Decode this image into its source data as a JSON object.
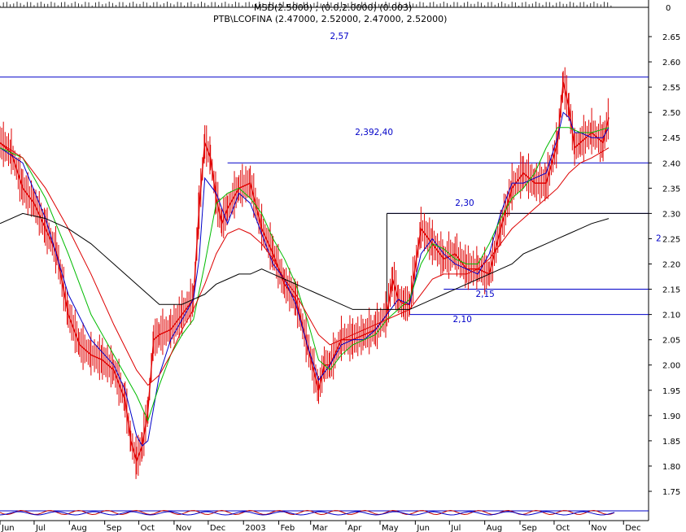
{
  "chart_data": {
    "type": "line",
    "title": "PTB\\LCOFINA (2.47000, 2.52000, 2.47000, 2.52000)",
    "header_overlap_text": "MSD(2.5000) ; (0.0,2.0000) (0.003)",
    "ylim": [
      1.71,
      2.68
    ],
    "x_range_days": [
      0,
      570
    ],
    "y_ticks": [
      "2.65",
      "2.60",
      "2.55",
      "2.50",
      "2.45",
      "2.40",
      "2.35",
      "2.30",
      "2.25",
      "2.20",
      "2.15",
      "2.10",
      "2.05",
      "2.00",
      "1.95",
      "1.90",
      "1.85",
      "1.80",
      "1.75"
    ],
    "y_tick_values": [
      2.65,
      2.6,
      2.55,
      2.5,
      2.45,
      2.4,
      2.35,
      2.3,
      2.25,
      2.2,
      2.15,
      2.1,
      2.05,
      2.0,
      1.95,
      1.9,
      1.85,
      1.8,
      1.75
    ],
    "top_right_value": "0",
    "x_ticks": [
      {
        "label": "Jun",
        "day": 0
      },
      {
        "label": "Jul",
        "day": 30
      },
      {
        "label": "Aug",
        "day": 61
      },
      {
        "label": "Sep",
        "day": 92
      },
      {
        "label": "Oct",
        "day": 122
      },
      {
        "label": "Nov",
        "day": 153
      },
      {
        "label": "Dec",
        "day": 183
      },
      {
        "label": "2003",
        "day": 214
      },
      {
        "label": "Feb",
        "day": 245
      },
      {
        "label": "Mar",
        "day": 273
      },
      {
        "label": "Apr",
        "day": 304
      },
      {
        "label": "May",
        "day": 334
      },
      {
        "label": "Jun",
        "day": 365
      },
      {
        "label": "Jul",
        "day": 395
      },
      {
        "label": "Aug",
        "day": 426
      },
      {
        "label": "Sep",
        "day": 457
      },
      {
        "label": "Oct",
        "day": 487
      },
      {
        "label": "Nov",
        "day": 518
      },
      {
        "label": "Dec",
        "day": 548
      }
    ],
    "levels": [
      {
        "label": "2,57",
        "y": 2.57,
        "x_from_day": 0,
        "x_to_day": 570,
        "label_day": 290,
        "label_y": 2.645
      },
      {
        "label": "2,39",
        "label2": "2,40",
        "y": 2.4,
        "x_from_day": 200,
        "x_to_day": 570,
        "label_day": 312,
        "label_y": 2.455
      },
      {
        "label": "2,30",
        "y": 2.3,
        "x_from_day": 340,
        "x_to_day": 570,
        "label_day": 400,
        "label_y": 2.315
      },
      {
        "label": "2,15",
        "y": 2.15,
        "x_from_day": 390,
        "x_to_day": 570,
        "label_day": 418,
        "label_y": 2.135
      },
      {
        "label": "2,10",
        "y": 2.1,
        "x_from_day": 360,
        "x_to_day": 570,
        "label_day": 398,
        "label_y": 2.085
      }
    ],
    "channel_box": {
      "x_from_day": 340,
      "y_top": 2.3,
      "y_bottom": 2.1
    },
    "truncated_right_label": "2",
    "series": [
      {
        "kind": "price",
        "color": "#e00000",
        "x": [
          0,
          10,
          20,
          30,
          40,
          50,
          60,
          70,
          80,
          90,
          100,
          110,
          115,
          120,
          125,
          130,
          135,
          140,
          150,
          160,
          170,
          175,
          180,
          185,
          190,
          195,
          200,
          210,
          220,
          230,
          240,
          250,
          260,
          270,
          280,
          285,
          290,
          300,
          310,
          320,
          330,
          340,
          345,
          350,
          355,
          360,
          370,
          380,
          390,
          400,
          410,
          420,
          430,
          440,
          450,
          460,
          470,
          480,
          490,
          495,
          500,
          505,
          510,
          520,
          530,
          535
        ],
        "y": [
          2.44,
          2.42,
          2.35,
          2.32,
          2.27,
          2.22,
          2.1,
          2.04,
          2.02,
          2.01,
          1.99,
          1.93,
          1.85,
          1.81,
          1.84,
          1.91,
          2.05,
          2.06,
          2.07,
          2.1,
          2.13,
          2.31,
          2.44,
          2.41,
          2.33,
          2.28,
          2.31,
          2.35,
          2.36,
          2.27,
          2.22,
          2.16,
          2.13,
          2.04,
          1.95,
          2.0,
          2.0,
          2.05,
          2.05,
          2.06,
          2.07,
          2.1,
          2.17,
          2.13,
          2.12,
          2.12,
          2.27,
          2.24,
          2.21,
          2.22,
          2.19,
          2.19,
          2.18,
          2.27,
          2.35,
          2.38,
          2.36,
          2.36,
          2.44,
          2.56,
          2.51,
          2.43,
          2.44,
          2.46,
          2.44,
          2.49
        ]
      },
      {
        "kind": "ma-short",
        "color": "#0000c8",
        "x": [
          0,
          20,
          40,
          60,
          80,
          100,
          110,
          120,
          125,
          130,
          140,
          150,
          160,
          170,
          175,
          180,
          190,
          200,
          210,
          220,
          230,
          240,
          250,
          260,
          270,
          280,
          290,
          300,
          310,
          320,
          330,
          340,
          350,
          360,
          370,
          380,
          390,
          400,
          410,
          420,
          430,
          440,
          450,
          460,
          470,
          480,
          490,
          495,
          500,
          505,
          510,
          520,
          530,
          535
        ],
        "y": [
          2.43,
          2.4,
          2.29,
          2.14,
          2.05,
          2.0,
          1.95,
          1.86,
          1.84,
          1.85,
          1.98,
          2.05,
          2.09,
          2.13,
          2.21,
          2.37,
          2.34,
          2.28,
          2.34,
          2.32,
          2.26,
          2.2,
          2.17,
          2.12,
          2.04,
          1.97,
          2.0,
          2.04,
          2.05,
          2.05,
          2.07,
          2.1,
          2.13,
          2.12,
          2.22,
          2.25,
          2.22,
          2.2,
          2.19,
          2.18,
          2.22,
          2.3,
          2.36,
          2.36,
          2.37,
          2.38,
          2.45,
          2.5,
          2.49,
          2.46,
          2.46,
          2.45,
          2.45,
          2.47
        ]
      },
      {
        "kind": "ma-medium",
        "color": "#00bb00",
        "x": [
          0,
          20,
          40,
          60,
          80,
          100,
          120,
          130,
          140,
          150,
          160,
          170,
          180,
          190,
          200,
          210,
          220,
          230,
          240,
          250,
          260,
          270,
          280,
          290,
          300,
          310,
          320,
          330,
          340,
          350,
          360,
          370,
          380,
          390,
          400,
          410,
          420,
          430,
          440,
          450,
          460,
          470,
          480,
          490,
          500,
          510,
          520,
          535
        ],
        "y": [
          2.43,
          2.41,
          2.33,
          2.22,
          2.1,
          2.02,
          1.94,
          1.89,
          1.96,
          2.02,
          2.06,
          2.09,
          2.2,
          2.32,
          2.34,
          2.35,
          2.33,
          2.3,
          2.25,
          2.21,
          2.16,
          2.09,
          2.01,
          1.99,
          2.02,
          2.04,
          2.05,
          2.06,
          2.09,
          2.11,
          2.13,
          2.2,
          2.24,
          2.23,
          2.21,
          2.2,
          2.2,
          2.24,
          2.29,
          2.33,
          2.35,
          2.38,
          2.43,
          2.47,
          2.47,
          2.46,
          2.46,
          2.47
        ]
      },
      {
        "kind": "ma-long",
        "color": "#dd0000",
        "x": [
          0,
          20,
          40,
          60,
          80,
          100,
          120,
          130,
          140,
          150,
          160,
          170,
          180,
          190,
          200,
          210,
          220,
          230,
          240,
          250,
          260,
          270,
          280,
          290,
          300,
          310,
          320,
          330,
          340,
          350,
          360,
          370,
          380,
          390,
          400,
          410,
          420,
          430,
          440,
          450,
          460,
          470,
          480,
          490,
          500,
          510,
          520,
          535
        ],
        "y": [
          2.44,
          2.41,
          2.35,
          2.27,
          2.18,
          2.08,
          1.99,
          1.96,
          1.98,
          2.02,
          2.07,
          2.11,
          2.16,
          2.22,
          2.26,
          2.27,
          2.26,
          2.24,
          2.21,
          2.17,
          2.14,
          2.1,
          2.06,
          2.04,
          2.05,
          2.06,
          2.07,
          2.08,
          2.09,
          2.1,
          2.11,
          2.14,
          2.17,
          2.18,
          2.18,
          2.18,
          2.19,
          2.21,
          2.24,
          2.27,
          2.29,
          2.31,
          2.33,
          2.35,
          2.38,
          2.4,
          2.41,
          2.43
        ]
      },
      {
        "kind": "ma-trend",
        "color": "#000000",
        "x": [
          0,
          20,
          40,
          60,
          80,
          100,
          120,
          140,
          160,
          170,
          180,
          190,
          200,
          210,
          220,
          230,
          240,
          250,
          260,
          270,
          280,
          290,
          300,
          310,
          320,
          330,
          340,
          350,
          360,
          370,
          380,
          390,
          400,
          410,
          420,
          430,
          440,
          450,
          460,
          470,
          480,
          490,
          500,
          510,
          520,
          535
        ],
        "y": [
          2.28,
          2.3,
          2.29,
          2.27,
          2.24,
          2.2,
          2.16,
          2.12,
          2.12,
          2.13,
          2.14,
          2.16,
          2.17,
          2.18,
          2.18,
          2.19,
          2.18,
          2.17,
          2.16,
          2.15,
          2.14,
          2.13,
          2.12,
          2.11,
          2.11,
          2.11,
          2.11,
          2.11,
          2.11,
          2.12,
          2.13,
          2.14,
          2.15,
          2.16,
          2.17,
          2.18,
          2.19,
          2.2,
          2.22,
          2.23,
          2.24,
          2.25,
          2.26,
          2.27,
          2.28,
          2.29
        ]
      }
    ]
  }
}
